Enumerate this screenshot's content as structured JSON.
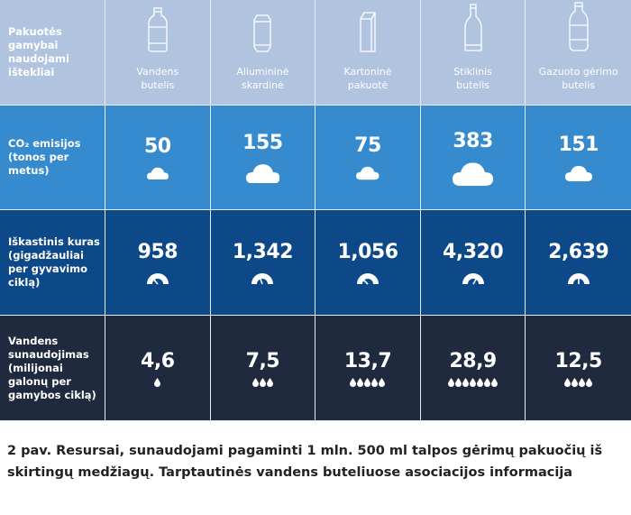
{
  "colors": {
    "header": "#b1c4df",
    "co2": "#358bcd",
    "fuel": "#0d4888",
    "water": "#1f2a3f"
  },
  "row_labels": {
    "header": [
      "Pakuotės",
      "gamybai",
      "naudojami",
      "ištekliai"
    ],
    "co2": [
      "CO₂ emisijos",
      "(tonos per",
      "metus)"
    ],
    "fuel": [
      "Iškastinis kuras",
      "(gigadžauliai",
      "per gyvavimo",
      "ciklą)"
    ],
    "water": [
      "Vandens",
      "sunaudojimas",
      "(milijonai",
      "galonų per",
      "gamybos ciklą)"
    ]
  },
  "columns": [
    {
      "name": [
        "Vandens",
        "butelis"
      ],
      "icon": "water-bottle-icon",
      "co2": "50",
      "fuel": "958",
      "water": "4,6",
      "drops": 1
    },
    {
      "name": [
        "Aliumininė",
        "skardinė"
      ],
      "icon": "aluminum-can-icon",
      "co2": "155",
      "fuel": "1,342",
      "water": "7,5",
      "drops": 3
    },
    {
      "name": [
        "Kartoninė",
        "pakuotė"
      ],
      "icon": "carton-icon",
      "co2": "75",
      "fuel": "1,056",
      "water": "13,7",
      "drops": 5
    },
    {
      "name": [
        "Stiklinis",
        "butelis"
      ],
      "icon": "glass-bottle-icon",
      "co2": "383",
      "fuel": "4,320",
      "water": "28,9",
      "drops": 7
    },
    {
      "name": [
        "Gazuoto gėrimo",
        "butelis"
      ],
      "icon": "soda-bottle-icon",
      "co2": "151",
      "fuel": "2,639",
      "water": "12,5",
      "drops": 4
    }
  ],
  "caption": "2 pav. Resursai, sunaudojami pagaminti 1 mln. 500 ml talpos gėrimų pakuočių iš skirtingų medžiagų. Tarptautinės vandens buteliuose asociacijos informacija"
}
